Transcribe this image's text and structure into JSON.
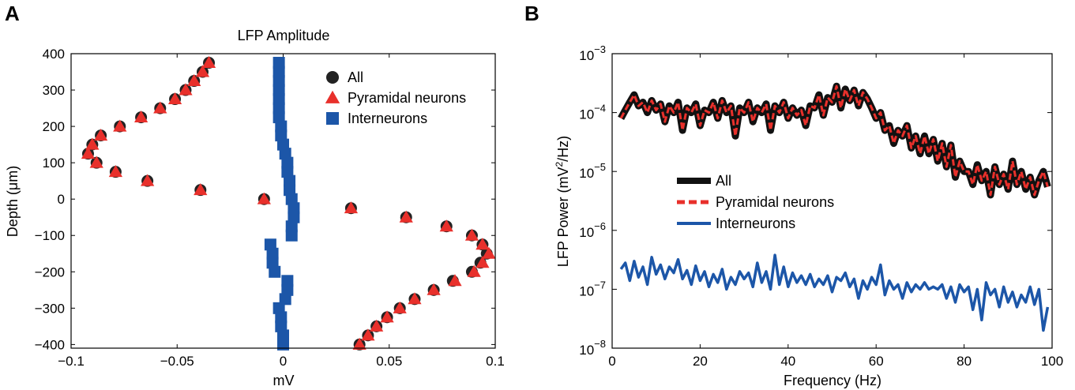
{
  "chart_data": [
    {
      "panel": "A",
      "type": "scatter",
      "title": "LFP Amplitude",
      "xlabel": "mV",
      "ylabel": "Depth (μm)",
      "xlim": [
        -0.1,
        0.1
      ],
      "ylim": [
        -410,
        400
      ],
      "xticks": [
        -0.1,
        -0.05,
        0,
        0.05,
        0.1
      ],
      "xtick_labels": [
        "−0.1",
        "−0.05",
        "0",
        "0.05",
        "0.1"
      ],
      "yticks": [
        400,
        300,
        200,
        100,
        0,
        -100,
        -200,
        -300,
        -400
      ],
      "ytick_labels": [
        "400",
        "300",
        "200",
        "100",
        "0",
        "−100",
        "−200",
        "−300",
        "−400"
      ],
      "grid": false,
      "legend_position": "top-right",
      "series": [
        {
          "name": "All",
          "marker": "circle",
          "color": "#222222",
          "points": [
            [
              -0.035,
              375
            ],
            [
              -0.038,
              350
            ],
            [
              -0.042,
              325
            ],
            [
              -0.046,
              300
            ],
            [
              -0.051,
              275
            ],
            [
              -0.058,
              250
            ],
            [
              -0.067,
              225
            ],
            [
              -0.077,
              200
            ],
            [
              -0.086,
              175
            ],
            [
              -0.09,
              150
            ],
            [
              -0.092,
              125
            ],
            [
              -0.088,
              100
            ],
            [
              -0.079,
              75
            ],
            [
              -0.064,
              50
            ],
            [
              -0.039,
              25
            ],
            [
              -0.009,
              0
            ],
            [
              0.032,
              -25
            ],
            [
              0.058,
              -50
            ],
            [
              0.077,
              -75
            ],
            [
              0.089,
              -100
            ],
            [
              0.094,
              -125
            ],
            [
              0.096,
              -150
            ],
            [
              0.093,
              -175
            ],
            [
              0.089,
              -200
            ],
            [
              0.08,
              -225
            ],
            [
              0.071,
              -250
            ],
            [
              0.062,
              -275
            ],
            [
              0.055,
              -300
            ],
            [
              0.049,
              -325
            ],
            [
              0.044,
              -350
            ],
            [
              0.04,
              -375
            ],
            [
              0.036,
              -400
            ]
          ]
        },
        {
          "name": "Pyramidal neurons",
          "marker": "triangle",
          "color": "#e8302b",
          "points": [
            [
              -0.035,
              375
            ],
            [
              -0.038,
              350
            ],
            [
              -0.042,
              325
            ],
            [
              -0.046,
              300
            ],
            [
              -0.051,
              275
            ],
            [
              -0.058,
              250
            ],
            [
              -0.067,
              225
            ],
            [
              -0.077,
              200
            ],
            [
              -0.086,
              175
            ],
            [
              -0.09,
              150
            ],
            [
              -0.092,
              125
            ],
            [
              -0.088,
              100
            ],
            [
              -0.079,
              75
            ],
            [
              -0.064,
              50
            ],
            [
              -0.039,
              25
            ],
            [
              -0.009,
              0
            ],
            [
              0.032,
              -25
            ],
            [
              0.058,
              -50
            ],
            [
              0.077,
              -75
            ],
            [
              0.089,
              -100
            ],
            [
              0.094,
              -125
            ],
            [
              0.097,
              -150
            ],
            [
              0.094,
              -175
            ],
            [
              0.09,
              -200
            ],
            [
              0.081,
              -225
            ],
            [
              0.071,
              -250
            ],
            [
              0.062,
              -275
            ],
            [
              0.055,
              -300
            ],
            [
              0.049,
              -325
            ],
            [
              0.044,
              -350
            ],
            [
              0.04,
              -375
            ],
            [
              0.036,
              -400
            ]
          ]
        },
        {
          "name": "Interneurons",
          "marker": "square",
          "color": "#1c56a8",
          "points": [
            [
              -0.002,
              375
            ],
            [
              -0.002,
              350
            ],
            [
              -0.002,
              325
            ],
            [
              -0.002,
              300
            ],
            [
              -0.002,
              275
            ],
            [
              -0.002,
              250
            ],
            [
              -0.002,
              225
            ],
            [
              -0.001,
              200
            ],
            [
              -0.001,
              175
            ],
            [
              0.0,
              150
            ],
            [
              0.001,
              125
            ],
            [
              0.002,
              100
            ],
            [
              0.002,
              75
            ],
            [
              0.003,
              50
            ],
            [
              0.003,
              25
            ],
            [
              0.004,
              0
            ],
            [
              0.005,
              -25
            ],
            [
              0.005,
              -50
            ],
            [
              0.004,
              -75
            ],
            [
              0.004,
              -100
            ],
            [
              -0.006,
              -125
            ],
            [
              -0.005,
              -150
            ],
            [
              -0.005,
              -175
            ],
            [
              -0.004,
              -200
            ],
            [
              0.002,
              -225
            ],
            [
              0.002,
              -250
            ],
            [
              0.001,
              -275
            ],
            [
              -0.002,
              -300
            ],
            [
              -0.001,
              -325
            ],
            [
              -0.001,
              -350
            ],
            [
              0.0,
              -375
            ],
            [
              0.0,
              -400
            ]
          ]
        }
      ]
    },
    {
      "panel": "B",
      "type": "line",
      "xlabel": "Frequency (Hz)",
      "ylabel_prefix": "LFP Power (mV",
      "ylabel_sup": "2",
      "ylabel_suffix": "/Hz)",
      "xlim": [
        0,
        100
      ],
      "ylim": [
        1e-08,
        0.001
      ],
      "yscale": "log",
      "xticks": [
        0,
        20,
        40,
        60,
        80,
        100
      ],
      "xtick_labels": [
        "0",
        "20",
        "40",
        "60",
        "80",
        "100"
      ],
      "yticks": [
        0.001,
        0.0001,
        1e-05,
        1e-06,
        1e-07,
        1e-08
      ],
      "ytick_bases": [
        "10",
        "10",
        "10",
        "10",
        "10",
        "10"
      ],
      "ytick_exponents": [
        "−3",
        "−4",
        "−5",
        "−6",
        "−7",
        "−8"
      ],
      "grid": false,
      "legend_position": "center-left",
      "x": [
        2,
        3,
        4,
        5,
        6,
        7,
        8,
        9,
        10,
        11,
        12,
        13,
        14,
        15,
        16,
        17,
        18,
        19,
        20,
        21,
        22,
        23,
        24,
        25,
        26,
        27,
        28,
        29,
        30,
        31,
        32,
        33,
        34,
        35,
        36,
        37,
        38,
        39,
        40,
        41,
        42,
        43,
        44,
        45,
        46,
        47,
        48,
        49,
        50,
        51,
        52,
        53,
        54,
        55,
        56,
        57,
        58,
        59,
        60,
        61,
        62,
        63,
        64,
        65,
        66,
        67,
        68,
        69,
        70,
        71,
        72,
        73,
        74,
        75,
        76,
        77,
        78,
        79,
        80,
        81,
        82,
        83,
        84,
        85,
        86,
        87,
        88,
        89,
        90,
        91,
        92,
        93,
        94,
        95,
        96,
        97,
        98,
        99
      ],
      "series": [
        {
          "name": "All",
          "color": "#111111",
          "style": "thick-band",
          "y": [
            8e-05,
            0.00011,
            0.00015,
            0.0002,
            0.00013,
            0.00015,
            0.0001,
            0.00016,
            0.00011,
            0.00014,
            7e-05,
            0.00013,
            0.0001,
            0.00015,
            5e-05,
            0.00012,
            0.0001,
            0.00014,
            6e-05,
            0.00011,
            0.0001,
            0.00015,
            8e-05,
            0.00016,
            0.0001,
            0.00013,
            4e-05,
            0.00012,
            0.0001,
            0.00015,
            7e-05,
            0.00012,
            0.0001,
            0.00014,
            5e-05,
            0.00013,
            0.0001,
            0.00015,
            8e-05,
            0.00012,
            9e-05,
            0.00011,
            6e-05,
            0.00013,
            0.00012,
            0.0002,
            9e-05,
            0.00018,
            0.00015,
            0.00028,
            0.00012,
            0.00025,
            0.00016,
            0.00024,
            0.00013,
            0.00022,
            0.00017,
            0.00012,
            8e-05,
            0.0001,
            5e-05,
            6e-05,
            3e-05,
            5e-05,
            4e-05,
            6e-05,
            2.5e-05,
            4e-05,
            2e-05,
            4e-05,
            2e-05,
            3.5e-05,
            1.5e-05,
            3e-05,
            1.2e-05,
            2.8e-05,
            8e-06,
            1.5e-05,
            1e-05,
            1e-05,
            6e-06,
            1.3e-05,
            7e-06,
            1e-05,
            4e-06,
            1.2e-05,
            6e-06,
            9e-06,
            5e-06,
            1.5e-05,
            6e-06,
            1e-05,
            5e-06,
            8e-06,
            4e-06,
            7e-06,
            1e-05,
            5.5e-06
          ]
        },
        {
          "name": "Pyramidal neurons",
          "color": "#e8302b",
          "style": "dashed",
          "y": [
            8e-05,
            0.00011,
            0.00015,
            0.0002,
            0.00013,
            0.00015,
            0.0001,
            0.00016,
            0.00011,
            0.00014,
            7e-05,
            0.00013,
            0.0001,
            0.00015,
            5e-05,
            0.00012,
            0.0001,
            0.00014,
            6e-05,
            0.00011,
            0.0001,
            0.00015,
            8e-05,
            0.00016,
            0.0001,
            0.00013,
            4e-05,
            0.00012,
            0.0001,
            0.00015,
            7e-05,
            0.00012,
            0.0001,
            0.00014,
            5e-05,
            0.00013,
            0.0001,
            0.00015,
            8e-05,
            0.00012,
            9e-05,
            0.00011,
            6e-05,
            0.00013,
            0.00012,
            0.0002,
            9e-05,
            0.00018,
            0.00015,
            0.00028,
            0.00012,
            0.00025,
            0.00016,
            0.00024,
            0.00013,
            0.00022,
            0.00017,
            0.00012,
            8e-05,
            0.0001,
            5e-05,
            6e-05,
            3e-05,
            5e-05,
            4e-05,
            6e-05,
            2.5e-05,
            4e-05,
            2e-05,
            4e-05,
            2e-05,
            3.5e-05,
            1.5e-05,
            3e-05,
            1.2e-05,
            2.8e-05,
            8e-06,
            1.5e-05,
            1e-05,
            1e-05,
            6e-06,
            1.3e-05,
            7e-06,
            1e-05,
            4e-06,
            1.2e-05,
            6e-06,
            9e-06,
            5e-06,
            1.5e-05,
            6e-06,
            1e-05,
            5e-06,
            8e-06,
            4e-06,
            7e-06,
            1e-05,
            5.5e-06
          ]
        },
        {
          "name": "Interneurons",
          "color": "#1c56a8",
          "style": "solid",
          "y": [
            2.2e-07,
            2.8e-07,
            1.4e-07,
            3e-07,
            1.6e-07,
            2.4e-07,
            1.2e-07,
            3.5e-07,
            1.8e-07,
            2.6e-07,
            1.5e-07,
            2.4e-07,
            1.9e-07,
            3.2e-07,
            1.5e-07,
            2.1e-07,
            1.2e-07,
            2.5e-07,
            1.4e-07,
            2e-07,
            1.1e-07,
            1.8e-07,
            1.3e-07,
            2.2e-07,
            1e-07,
            1.6e-07,
            1.2e-07,
            2e-07,
            1.5e-07,
            1.9e-07,
            1.1e-07,
            2.8e-07,
            1.3e-07,
            2e-07,
            1e-07,
            3.8e-07,
            1.2e-07,
            2.4e-07,
            1.1e-07,
            1.9e-07,
            1.3e-07,
            1.7e-07,
            1.2e-07,
            1.8e-07,
            1.1e-07,
            1.5e-07,
            1.2e-07,
            1.7e-07,
            9e-08,
            1.6e-07,
            1.4e-07,
            1.9e-07,
            1.1e-07,
            1.5e-07,
            7e-08,
            1.4e-07,
            1e-07,
            1.6e-07,
            1.2e-07,
            2.6e-07,
            8e-08,
            1.4e-07,
            1e-07,
            1.2e-07,
            7e-08,
            1.3e-07,
            9e-08,
            1.2e-07,
            1e-07,
            1.3e-07,
            1e-07,
            1.1e-07,
            1e-07,
            1.2e-07,
            7e-08,
            1.1e-07,
            6e-08,
            1.2e-07,
            9e-08,
            1.1e-07,
            4.5e-08,
            1e-07,
            3e-08,
            1.3e-07,
            8e-08,
            1e-07,
            5e-08,
            1.1e-07,
            6e-08,
            9e-08,
            5e-08,
            8e-08,
            6e-08,
            1.1e-07,
            5.5e-08,
            1e-07,
            2e-08,
            5e-08
          ]
        }
      ]
    }
  ]
}
